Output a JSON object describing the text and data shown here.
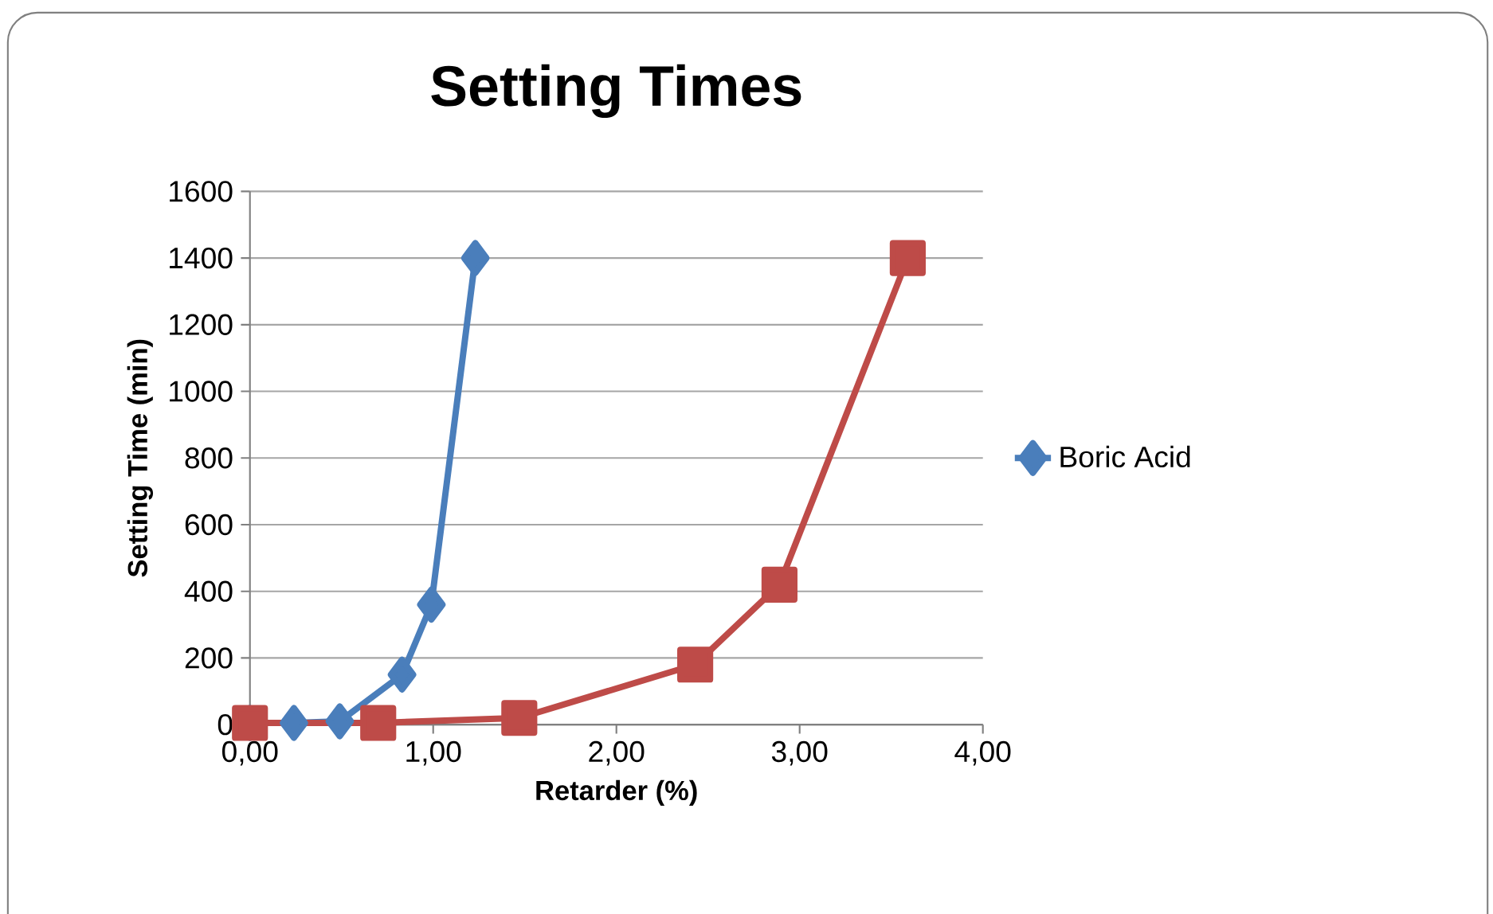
{
  "chart_data": {
    "type": "line",
    "title": "Setting Times",
    "xlabel": "Retarder (%)",
    "ylabel": "Setting Time (min)",
    "series": [
      {
        "name": "Boric Acid",
        "color": "#4a7ebb",
        "marker": "diamond",
        "x": [
          0,
          0.24,
          0.49,
          0.83,
          0.99,
          1.23
        ],
        "values": [
          5,
          5,
          10,
          150,
          360,
          1400
        ]
      },
      {
        "color": "#be4b48",
        "marker": "square",
        "x": [
          0,
          0.7,
          1.47,
          2.43,
          2.89,
          3.59
        ],
        "values": [
          5,
          5,
          20,
          180,
          420,
          1400
        ]
      }
    ],
    "xlim": [
      0,
      4
    ],
    "xticks": [
      {
        "value": 0,
        "label": "0,00"
      },
      {
        "value": 1,
        "label": "1,00"
      },
      {
        "value": 2,
        "label": "2,00"
      },
      {
        "value": 3,
        "label": "3,00"
      },
      {
        "value": 4,
        "label": "4,00"
      }
    ],
    "ylim": [
      0,
      1600
    ],
    "yticks": [
      0,
      200,
      400,
      600,
      800,
      1000,
      1200,
      1400,
      1600
    ],
    "grid": "y",
    "legend": "right",
    "line_style": "solid"
  }
}
